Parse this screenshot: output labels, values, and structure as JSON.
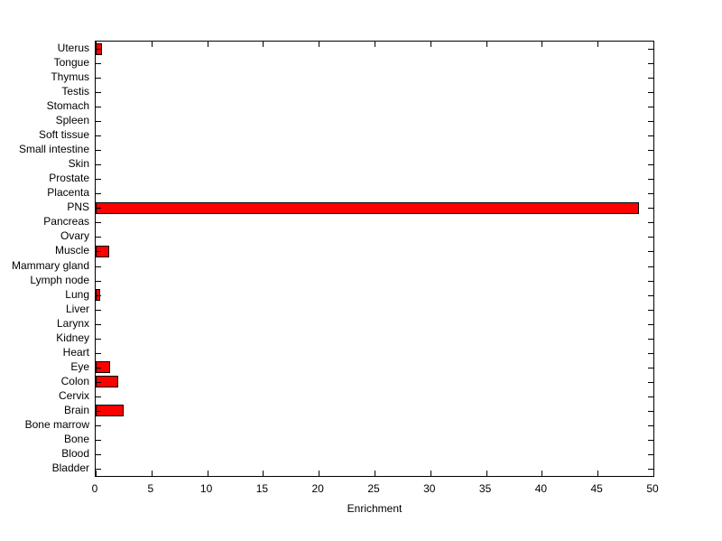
{
  "chart_data": {
    "type": "bar",
    "orientation": "horizontal",
    "title": "",
    "xlabel": "Enrichment",
    "ylabel": "",
    "xlim": [
      0,
      50
    ],
    "xticks": [
      0,
      5,
      10,
      15,
      20,
      25,
      30,
      35,
      40,
      45,
      50
    ],
    "grid": false,
    "legend": null,
    "categories_top_to_bottom": [
      "Uterus",
      "Tongue",
      "Thymus",
      "Testis",
      "Stomach",
      "Spleen",
      "Soft tissue",
      "Small intestine",
      "Skin",
      "Prostate",
      "Placenta",
      "PNS",
      "Pancreas",
      "Ovary",
      "Muscle",
      "Mammary gland",
      "Lymph node",
      "Lung",
      "Liver",
      "Larynx",
      "Kidney",
      "Heart",
      "Eye",
      "Colon",
      "Cervix",
      "Brain",
      "Bone marrow",
      "Bone",
      "Blood",
      "Bladder"
    ],
    "values": [
      0.6,
      0,
      0,
      0,
      0,
      0,
      0,
      0,
      0,
      0,
      0,
      48.7,
      0,
      0,
      1.2,
      0,
      0,
      0.4,
      0,
      0,
      0,
      0,
      1.3,
      2.0,
      0,
      2.5,
      0,
      0,
      0,
      0
    ],
    "bar_color": "#ff0000",
    "bar_edge_color": "#000000",
    "axis_color": "#000000",
    "background_color": "#ffffff"
  }
}
